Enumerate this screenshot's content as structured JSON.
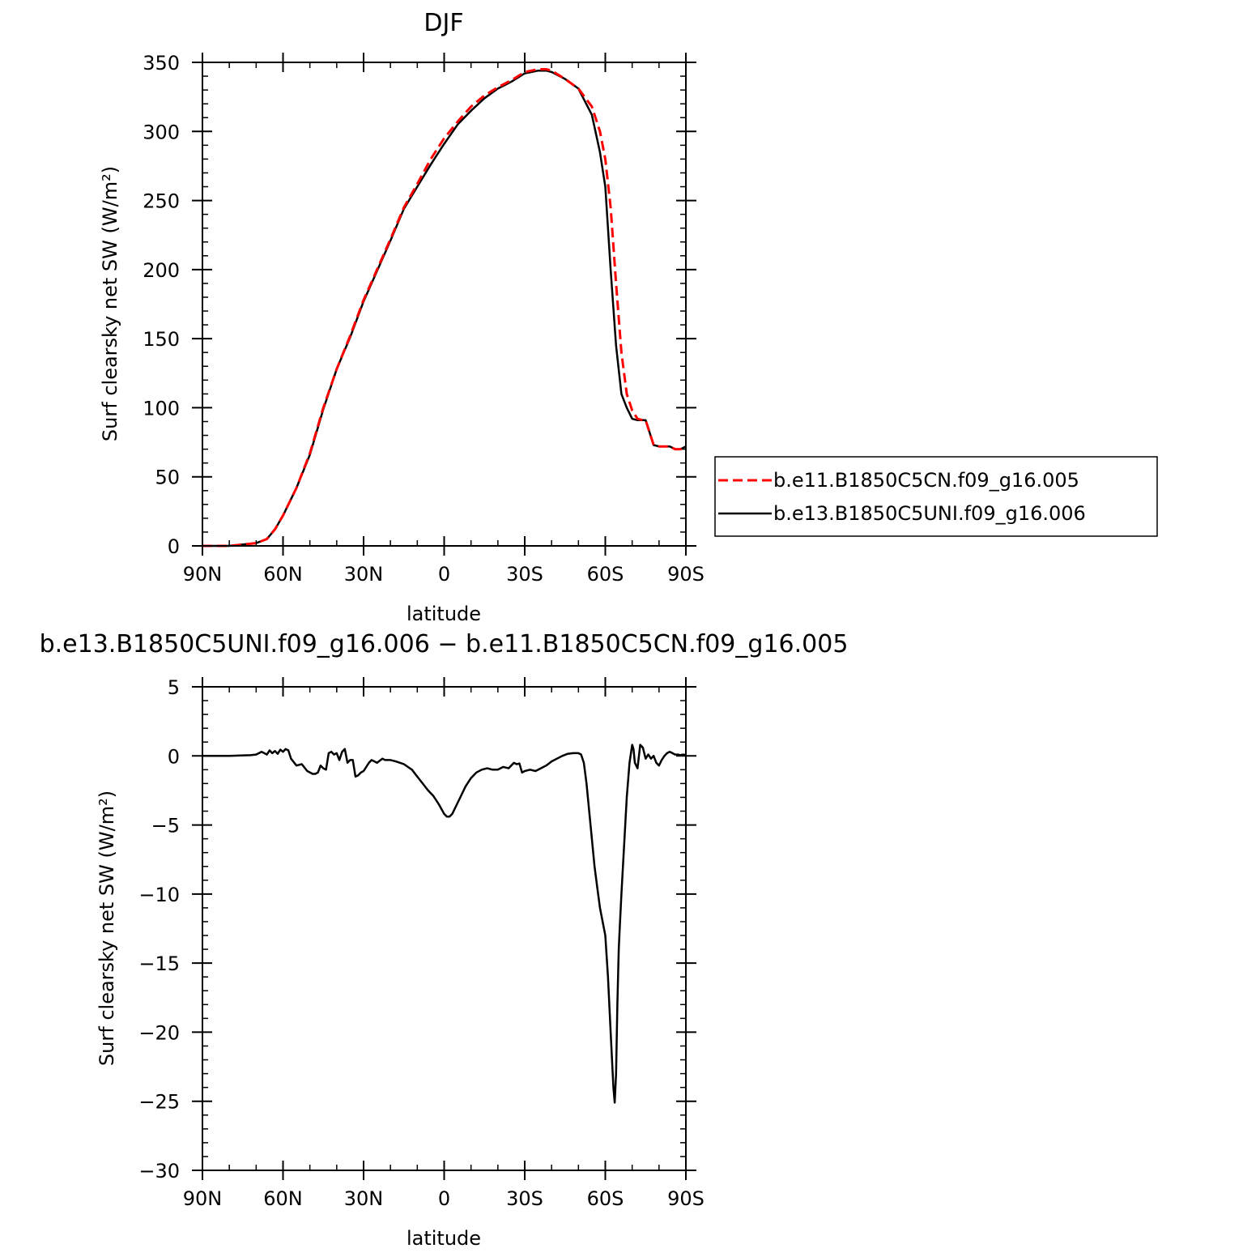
{
  "chart_data": [
    {
      "type": "line",
      "title": "DJF",
      "xlabel": "latitude",
      "ylabel": "Surf clearsky net SW (W/m²)",
      "xlim": [
        90,
        -90
      ],
      "ylim": [
        0,
        350
      ],
      "x_ticks": [
        {
          "value": 90,
          "label": "90N"
        },
        {
          "value": 60,
          "label": "60N"
        },
        {
          "value": 30,
          "label": "30N"
        },
        {
          "value": 0,
          "label": "0"
        },
        {
          "value": -30,
          "label": "30S"
        },
        {
          "value": -60,
          "label": "60S"
        },
        {
          "value": -90,
          "label": "90S"
        }
      ],
      "y_ticks": [
        {
          "value": 0,
          "label": "0"
        },
        {
          "value": 50,
          "label": "50"
        },
        {
          "value": 100,
          "label": "100"
        },
        {
          "value": 150,
          "label": "150"
        },
        {
          "value": 200,
          "label": "200"
        },
        {
          "value": 250,
          "label": "250"
        },
        {
          "value": 300,
          "label": "300"
        },
        {
          "value": 350,
          "label": "350"
        }
      ],
      "legend_position": "right",
      "series": [
        {
          "name": "b.e11.B1850C5CN.f09_g16.005",
          "color": "#ff0000",
          "dash": "dashed",
          "x": [
            90,
            80,
            75,
            70,
            66,
            63,
            60,
            55,
            50,
            45,
            40,
            35,
            30,
            25,
            20,
            15,
            10,
            5,
            0,
            -5,
            -10,
            -15,
            -20,
            -25,
            -30,
            -35,
            -38,
            -40,
            -45,
            -50,
            -55,
            -58,
            -60,
            -62,
            -64,
            -66,
            -68,
            -70,
            -72,
            -74,
            -75,
            -78,
            -80,
            -82,
            -84,
            -86,
            -88,
            -90
          ],
          "y": [
            0,
            0,
            1,
            2,
            5,
            12,
            22,
            42,
            67,
            100,
            128,
            152,
            178,
            200,
            222,
            245,
            262,
            280,
            295,
            307,
            318,
            326,
            332,
            337,
            343,
            345,
            345,
            344,
            338,
            331,
            318,
            300,
            280,
            245,
            190,
            140,
            110,
            98,
            92,
            91,
            91,
            73,
            72,
            72,
            72,
            70,
            70,
            72
          ]
        },
        {
          "name": "b.e13.B1850C5UNI.f09_g16.006",
          "color": "#000000",
          "dash": "solid",
          "x": [
            90,
            80,
            75,
            70,
            66,
            63,
            60,
            55,
            50,
            45,
            40,
            35,
            30,
            25,
            20,
            15,
            10,
            5,
            0,
            -5,
            -10,
            -15,
            -20,
            -25,
            -30,
            -35,
            -38,
            -40,
            -45,
            -50,
            -55,
            -58,
            -60,
            -62,
            -64,
            -66,
            -68,
            -70,
            -72,
            -74,
            -75,
            -78,
            -80,
            -82,
            -84,
            -86,
            -88,
            -90
          ],
          "y": [
            0,
            0,
            1,
            2,
            5,
            12,
            22,
            42,
            66,
            99,
            128,
            151,
            177,
            199,
            221,
            244,
            260,
            276,
            291,
            305,
            315,
            324,
            331,
            336,
            342,
            344,
            344,
            343,
            338,
            331,
            312,
            285,
            260,
            200,
            145,
            110,
            100,
            92,
            91,
            91,
            91,
            73,
            72,
            72,
            72,
            70,
            70,
            72
          ]
        }
      ]
    },
    {
      "type": "line",
      "title": "b.e13.B1850C5UNI.f09_g16.006 − b.e11.B1850C5CN.f09_g16.005",
      "xlabel": "latitude",
      "ylabel": "Surf clearsky net SW (W/m²)",
      "xlim": [
        90,
        -90
      ],
      "ylim": [
        -30,
        5
      ],
      "x_ticks": [
        {
          "value": 90,
          "label": "90N"
        },
        {
          "value": 60,
          "label": "60N"
        },
        {
          "value": 30,
          "label": "30N"
        },
        {
          "value": 0,
          "label": "0"
        },
        {
          "value": -30,
          "label": "30S"
        },
        {
          "value": -60,
          "label": "60S"
        },
        {
          "value": -90,
          "label": "90S"
        }
      ],
      "y_ticks": [
        {
          "value": 5,
          "label": "5"
        },
        {
          "value": 0,
          "label": "0"
        },
        {
          "value": -5,
          "label": "−5"
        },
        {
          "value": -10,
          "label": "−10"
        },
        {
          "value": -15,
          "label": "−15"
        },
        {
          "value": -20,
          "label": "−20"
        },
        {
          "value": -25,
          "label": "−25"
        },
        {
          "value": -30,
          "label": "−30"
        }
      ],
      "series": [
        {
          "color": "#000000",
          "dash": "solid",
          "x": [
            90,
            80,
            72,
            70,
            68,
            66,
            65,
            64,
            63,
            62,
            61,
            60,
            59,
            58,
            57,
            55,
            53,
            51,
            49,
            48,
            47,
            46,
            45,
            44,
            43,
            42,
            41,
            40,
            39,
            38,
            37,
            36,
            35,
            34,
            33,
            32,
            31,
            30,
            28,
            27,
            26,
            25,
            23,
            22,
            20,
            18,
            15,
            12,
            10,
            8,
            6,
            4,
            2,
            0,
            -1,
            -2,
            -3,
            -4,
            -6,
            -8,
            -10,
            -12,
            -14,
            -16,
            -18,
            -20,
            -22,
            -24,
            -26,
            -27,
            -28,
            -29,
            -30,
            -32,
            -34,
            -36,
            -38,
            -40,
            -42,
            -44,
            -46,
            -48,
            -50,
            -51,
            -52,
            -53,
            -54,
            -55,
            -56,
            -57,
            -58,
            -59,
            -60,
            -61,
            -62,
            -63,
            -63.5,
            -64,
            -64.5,
            -65,
            -65.5,
            -66,
            -67,
            -68,
            -69,
            -70,
            -70.5,
            -71,
            -72,
            -73,
            -74,
            -75,
            -76,
            -77,
            -78,
            -79,
            -80,
            -81,
            -82,
            -83,
            -84,
            -85,
            -86,
            -87,
            -88,
            -89,
            -90
          ],
          "y": [
            0,
            0,
            0.05,
            0.1,
            0.3,
            0.1,
            0.4,
            0.2,
            0.35,
            0.15,
            0.45,
            0.3,
            0.5,
            0.4,
            -0.2,
            -0.7,
            -0.6,
            -1.1,
            -1.3,
            -1.3,
            -1.2,
            -0.7,
            -0.9,
            -1.0,
            0.2,
            0.3,
            0.1,
            0.2,
            -0.3,
            0.3,
            0.5,
            -0.5,
            -0.3,
            -0.3,
            -1.5,
            -1.4,
            -1.2,
            -1.1,
            -0.5,
            -0.3,
            -0.4,
            -0.5,
            -0.2,
            -0.3,
            -0.3,
            -0.4,
            -0.6,
            -1.0,
            -1.5,
            -2.0,
            -2.5,
            -2.9,
            -3.5,
            -4.2,
            -4.4,
            -4.4,
            -4.2,
            -3.8,
            -3.0,
            -2.2,
            -1.6,
            -1.2,
            -1.0,
            -0.9,
            -1.0,
            -1.0,
            -0.8,
            -0.9,
            -0.5,
            -0.6,
            -0.55,
            -1.2,
            -1.1,
            -1.0,
            -1.1,
            -0.9,
            -0.7,
            -0.4,
            -0.2,
            0.0,
            0.15,
            0.2,
            0.2,
            0.1,
            -0.5,
            -2.0,
            -4.0,
            -6.0,
            -8.0,
            -9.5,
            -11.0,
            -12.0,
            -13.0,
            -16.0,
            -20.0,
            -24.0,
            -25.1,
            -23.0,
            -18.0,
            -14.0,
            -12.0,
            -10.0,
            -6.5,
            -3.0,
            -0.5,
            0.8,
            0.5,
            -0.5,
            -0.9,
            0.8,
            0.6,
            -0.2,
            0.1,
            -0.2,
            0.0,
            -0.5,
            -0.7,
            -0.3,
            0.0,
            0.2,
            0.3,
            0.2,
            0.1,
            0.1,
            0.05,
            0.1,
            0.05
          ]
        }
      ]
    }
  ],
  "legend": {
    "items": [
      {
        "label": "b.e11.B1850C5CN.f09_g16.005",
        "color": "#ff0000",
        "dash": "dashed"
      },
      {
        "label": "b.e13.B1850C5UNI.f09_g16.006",
        "color": "#000000",
        "dash": "solid"
      }
    ]
  }
}
